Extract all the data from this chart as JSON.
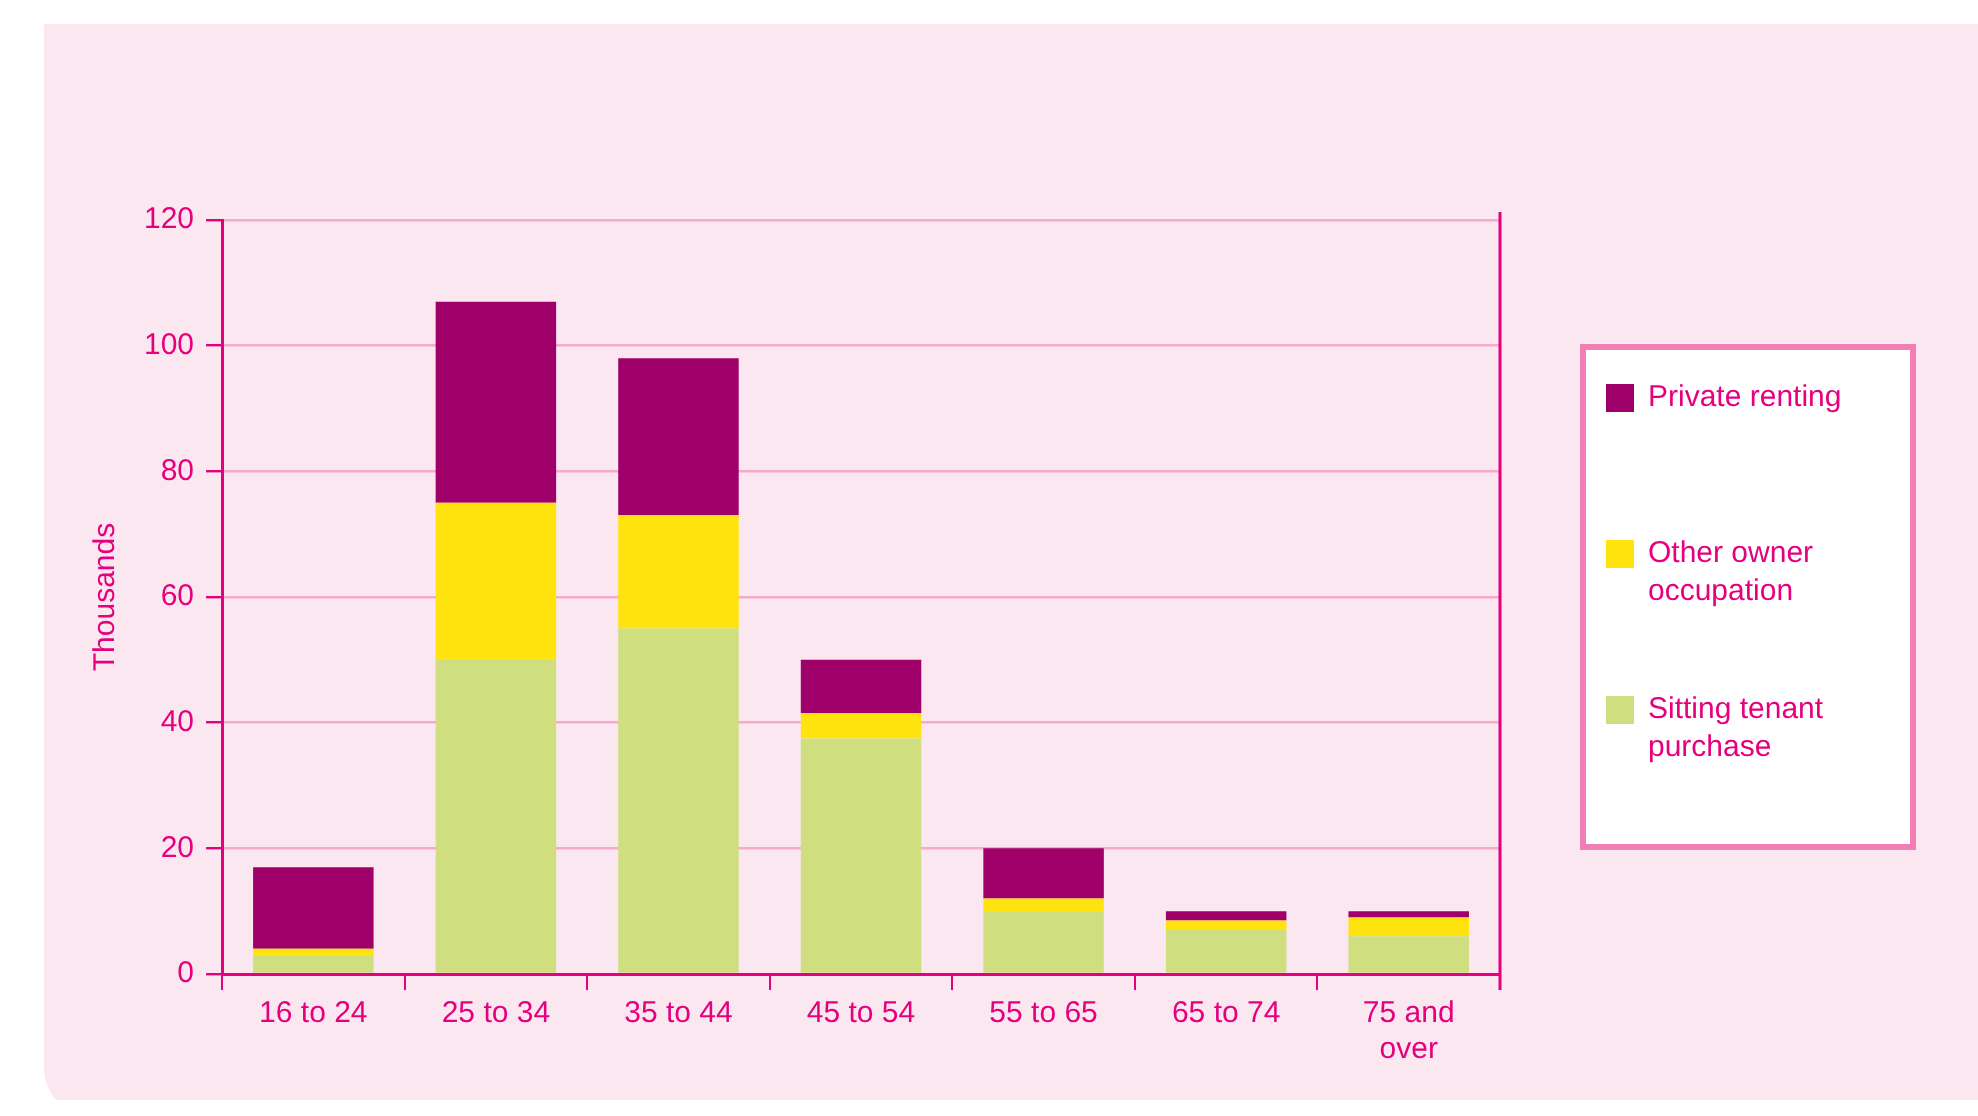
{
  "chart_data": {
    "type": "bar",
    "ylabel": "Thousands",
    "categories": [
      "16 to 24",
      "25 to 34",
      "35 to 44",
      "45 to 54",
      "55 to 65",
      "65 to 74",
      "75 and over"
    ],
    "stacked": true,
    "ylim": [
      0,
      120
    ],
    "yticks": [
      0,
      20,
      40,
      60,
      80,
      100,
      120
    ],
    "grid": "y",
    "legend": "right",
    "series": [
      {
        "name": "Sitting tenant purchase",
        "color": "#cfdf80",
        "values": [
          3,
          50,
          55,
          37.5,
          10,
          7,
          6
        ]
      },
      {
        "name": "Other owner occupation",
        "color": "#ffe30f",
        "values": [
          1,
          25,
          18,
          4,
          2,
          1.5,
          3
        ]
      },
      {
        "name": "Private renting",
        "color": "#a0006a",
        "values": [
          13,
          32,
          25,
          8.5,
          8,
          1.5,
          1
        ]
      }
    ]
  }
}
